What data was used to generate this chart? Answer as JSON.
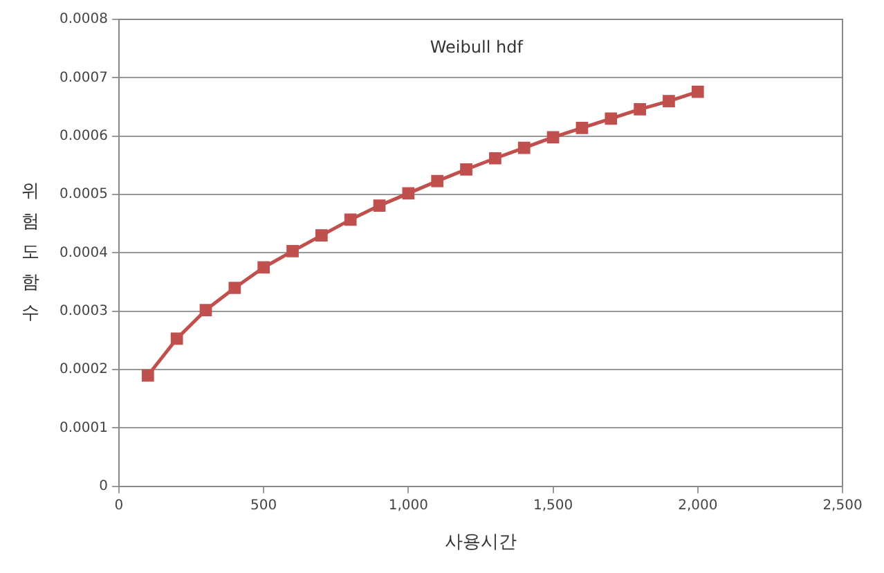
{
  "chart_data": {
    "type": "line",
    "title": "Weibull hdf",
    "xlabel": "사용시간",
    "ylabel": "위험도함수",
    "x": [
      100,
      200,
      300,
      400,
      500,
      600,
      700,
      800,
      900,
      1000,
      1100,
      1200,
      1300,
      1400,
      1500,
      1600,
      1700,
      1800,
      1900,
      2000
    ],
    "series": [
      {
        "color": "#c0504d",
        "values": [
          0.00019,
          0.000253,
          0.000302,
          0.00034,
          0.000375,
          0.000403,
          0.00043,
          0.000457,
          0.000481,
          0.000502,
          0.000523,
          0.000543,
          0.000562,
          0.00058,
          0.000598,
          0.000614,
          0.00063,
          0.000646,
          0.00066,
          0.000676
        ]
      }
    ],
    "xlim": [
      0,
      2500
    ],
    "xticks": [
      0,
      500,
      {
        "value": 1000,
        "label": "1,000"
      },
      {
        "value": 1500,
        "label": "1,500"
      },
      {
        "value": 2000,
        "label": "2,000"
      },
      {
        "value": 2500,
        "label": "2,500"
      }
    ],
    "ylim": [
      0,
      0.0008
    ],
    "yticks": [
      0,
      0.0001,
      0.0002,
      0.0003,
      0.0004,
      0.0005,
      0.0006,
      0.0007,
      0.0008
    ],
    "grid": "y",
    "legend": false,
    "marker": "square",
    "line_style": "solid"
  }
}
